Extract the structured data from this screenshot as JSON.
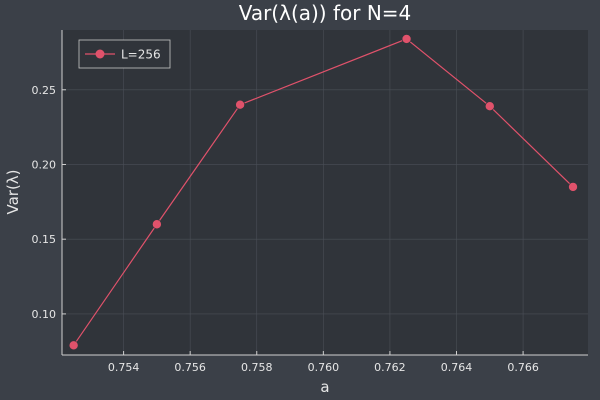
{
  "chart_data": {
    "type": "line",
    "title": "Var(λ(a)) for N=4",
    "xlabel": "a",
    "ylabel": "Var(λ)",
    "xlim": [
      0.75215,
      0.76795
    ],
    "ylim": [
      0.0725,
      0.29
    ],
    "xticks": [
      0.754,
      0.756,
      0.758,
      0.76,
      0.762,
      0.764,
      0.766
    ],
    "xtick_labels": [
      "0.754",
      "0.756",
      "0.758",
      "0.760",
      "0.762",
      "0.764",
      "0.766"
    ],
    "yticks": [
      0.1,
      0.15,
      0.2,
      0.25
    ],
    "ytick_labels": [
      "0.10",
      "0.15",
      "0.20",
      "0.25"
    ],
    "grid": true,
    "legend_position": "top-left",
    "series": [
      {
        "name": "L=256",
        "color": "#e0526b",
        "x": [
          0.7525,
          0.755,
          0.7575,
          0.7625,
          0.765,
          0.7675
        ],
        "y": [
          0.079,
          0.16,
          0.24,
          0.284,
          0.239,
          0.185
        ]
      }
    ]
  }
}
